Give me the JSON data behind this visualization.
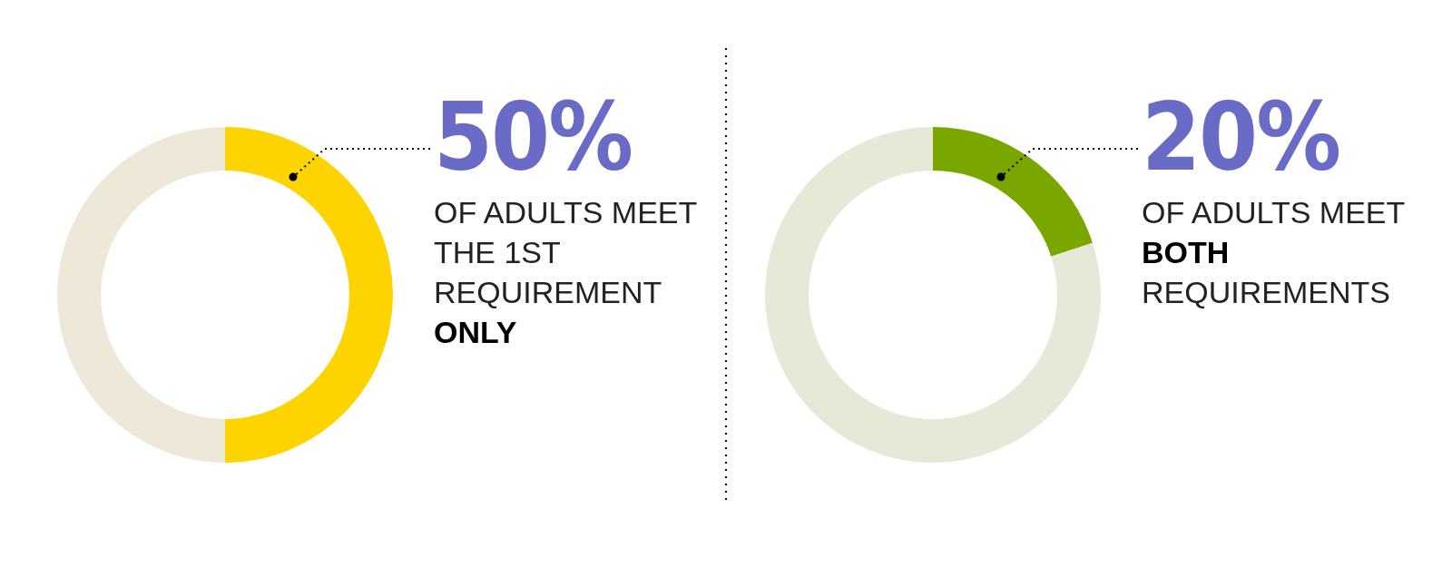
{
  "chart_data": [
    {
      "type": "donut",
      "categories": [
        null,
        null
      ],
      "values": [
        50,
        50
      ],
      "colors": [
        "#fdd400",
        "#ede8d8"
      ],
      "annotations": [
        "50%",
        "OF ADULTS MEET THE 1ST REQUIREMENT",
        "ONLY"
      ]
    },
    {
      "type": "donut",
      "categories": [
        null,
        null
      ],
      "values": [
        20,
        80
      ],
      "colors": [
        "#7aa600",
        "#e6e8d8"
      ],
      "annotations": [
        "20%",
        "OF ADULTS MEET",
        "BOTH",
        "REQUIREMENTS"
      ]
    }
  ]
}
